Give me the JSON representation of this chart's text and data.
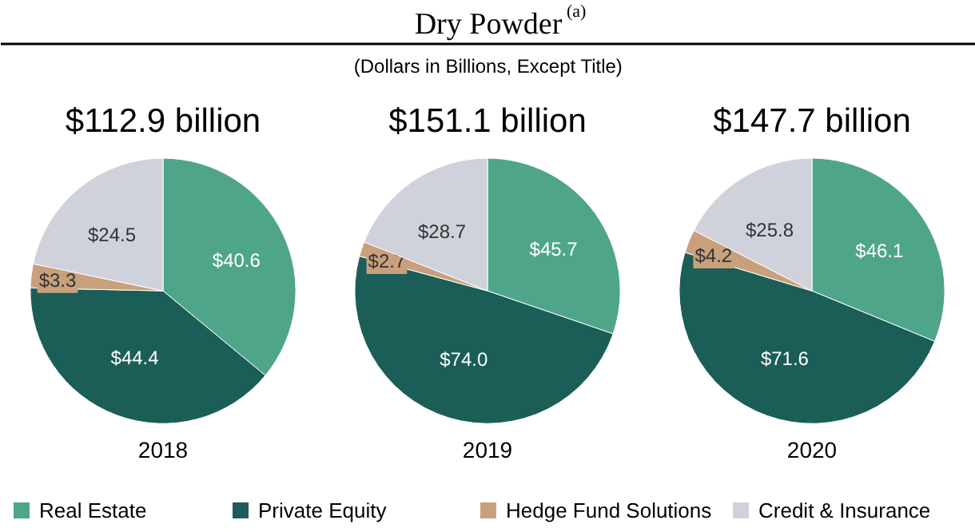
{
  "chart_data": [
    {
      "type": "pie",
      "title": "$112.9 billion",
      "xlabel": "2018",
      "annotations": [
        "Dry Powder$^{(a)}$",
        "(Dollars in Billions, Except Title)"
      ],
      "legend": "bottom",
      "categories": [
        "Real Estate",
        "Private Equity",
        "Hedge Fund Solutions",
        "Credit & Insurance"
      ],
      "values": [
        40.6,
        44.4,
        3.3,
        24.5
      ],
      "value_labels": [
        "$40.6",
        "$44.4",
        "$3.3",
        "$24.5"
      ],
      "colors": [
        "#4fa58a",
        "#1b5e57",
        "#c9a07c",
        "#d0d2db"
      ]
    },
    {
      "type": "pie",
      "title": "$151.1 billion",
      "xlabel": "2019",
      "categories": [
        null,
        null,
        null,
        null
      ],
      "values": [
        45.7,
        74.0,
        2.7,
        28.7
      ],
      "value_labels": [
        "$45.7",
        "$74.0",
        "$2.7",
        "$28.7"
      ],
      "colors": [
        "#4fa58a",
        "#1b5e57",
        "#c9a07c",
        "#d0d2db"
      ]
    },
    {
      "type": "pie",
      "title": "$147.7 billion",
      "xlabel": "2020",
      "categories": [
        null,
        null,
        null,
        null
      ],
      "values": [
        46.1,
        71.6,
        4.2,
        25.8
      ],
      "value_labels": [
        "$46.1",
        "$71.6",
        "$4.2",
        "$25.8"
      ],
      "colors": [
        "#4fa58a",
        "#1b5e57",
        "#c9a07c",
        "#d0d2db"
      ]
    }
  ]
}
